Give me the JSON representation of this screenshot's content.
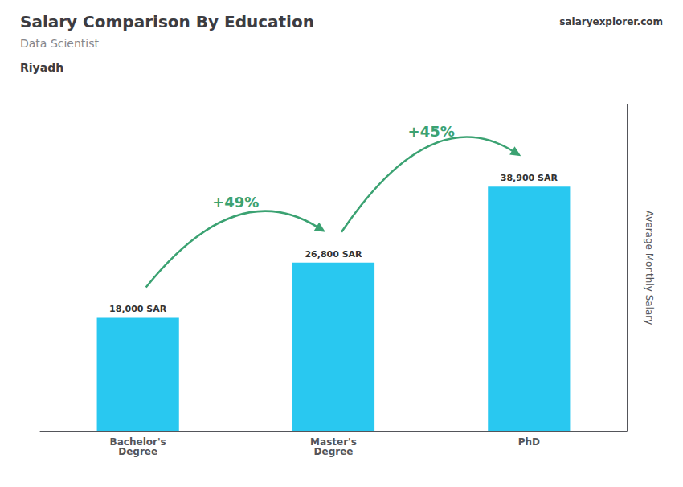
{
  "chart_data": {
    "type": "bar",
    "title": "Salary Comparison By Education",
    "subtitle": "Data Scientist",
    "location": "Riyadh",
    "source": "salaryexplorer.com",
    "ylabel": "Average Monthly Salary",
    "categories": [
      "Bachelor's\nDegree",
      "Master's\nDegree",
      "PhD"
    ],
    "values": [
      18000,
      26800,
      38900
    ],
    "value_labels": [
      "18,000 SAR",
      "26,800 SAR",
      "38,900 SAR"
    ],
    "data_labels": true,
    "color": "#29C8F0",
    "ylim": [
      0,
      52000
    ],
    "grid": false,
    "tick_labels": "x",
    "annotations": [
      "+49%",
      "+45%"
    ]
  }
}
